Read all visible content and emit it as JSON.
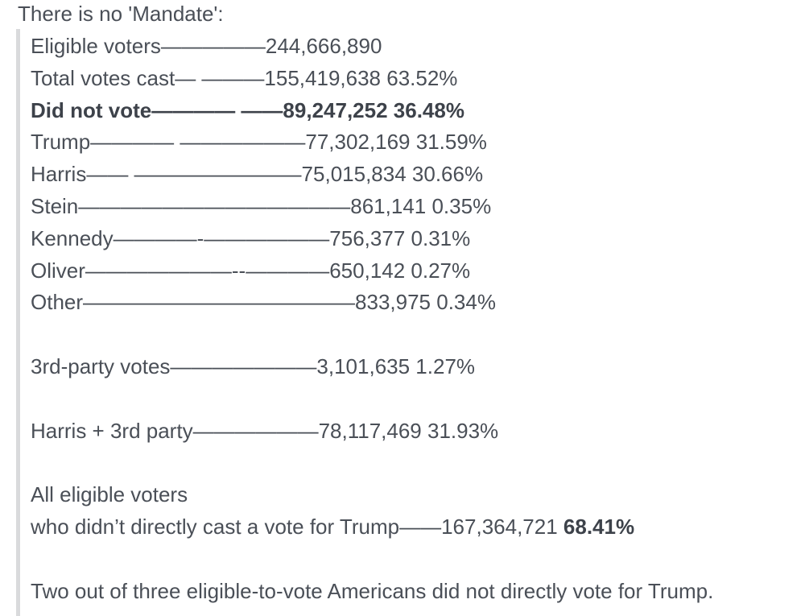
{
  "post": {
    "intro": "There is no 'Mandate':",
    "lines": [
      "Eligible voters—————244,666,890",
      "Total votes cast— ———155,419,638 63.52%",
      "Did not vote———— ——89,247,252 36.48%",
      "Trump———— ——————77,302,169 31.59%",
      "Harris—— ————————75,015,834 30.66%",
      "Stein—————————————861,141 0.35%",
      "Kennedy————-——————756,377 0.31%",
      "Oliver———————--————650,142 0.27%",
      "Other—————————————833,975 0.34%"
    ],
    "third_party": "3rd-party votes———————3,101,635 1.27%",
    "harris_plus": "Harris + 3rd party——————78,117,469 31.93%",
    "all_eligible_line1": "All eligible voters",
    "all_eligible_line2": "who didn’t directly cast a vote for Trump——167,364,721 ",
    "all_eligible_pct": "68.41%",
    "conclusion": "Two out of three eligible-to-vote Americans did not directly vote for Trump."
  }
}
